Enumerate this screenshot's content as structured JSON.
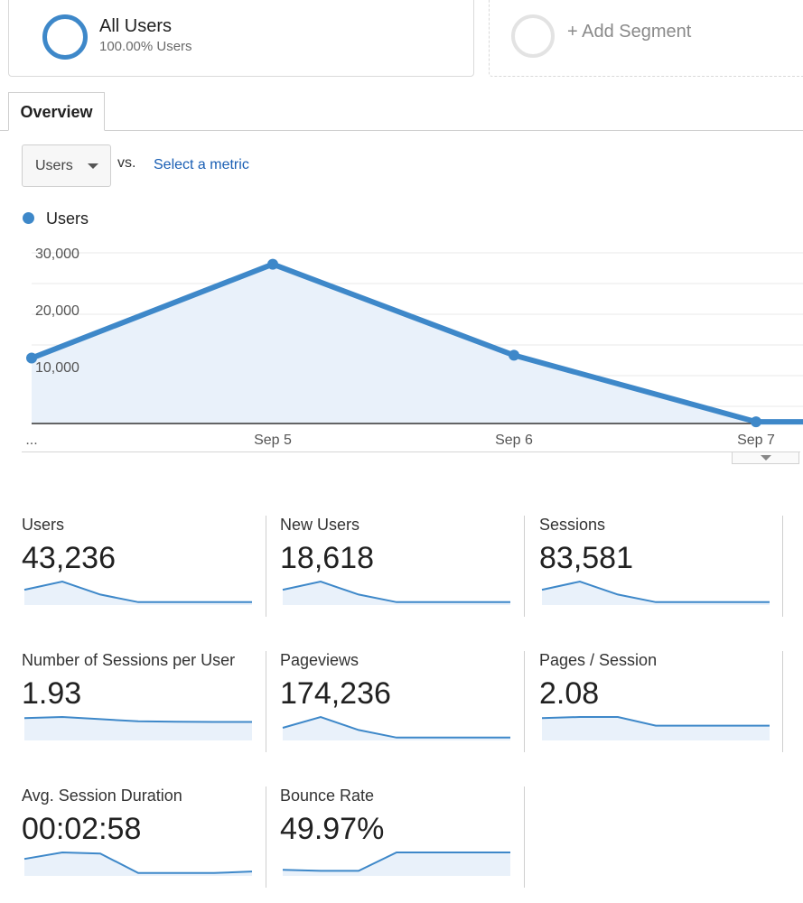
{
  "segments": {
    "active": {
      "name": "All Users",
      "subtitle": "100.00% Users"
    },
    "add_label": "+ Add Segment"
  },
  "tabs": [
    {
      "label": "Overview",
      "active": true
    }
  ],
  "metric_selector": {
    "selected": "Users",
    "vs_label": "vs.",
    "select_link": "Select a metric"
  },
  "legend": {
    "label": "Users",
    "color": "#3e88c9"
  },
  "chart_data": {
    "type": "area",
    "title": "",
    "xlabel": "",
    "ylabel": "",
    "x_tick_labels": [
      "...",
      "Sep 5",
      "Sep 6",
      "Sep 7"
    ],
    "y_tick_labels": [
      "10,000",
      "20,000",
      "30,000"
    ],
    "ylim": [
      0,
      30000
    ],
    "grid": true,
    "series": [
      {
        "name": "Users",
        "color": "#3e88c9",
        "values": [
          11500,
          28000,
          12000,
          300,
          300
        ]
      }
    ]
  },
  "metrics": [
    {
      "label": "Users",
      "value": "43,236",
      "spark": [
        0.62,
        1.0,
        0.4,
        0.05,
        0.05,
        0.05,
        0.05
      ]
    },
    {
      "label": "New Users",
      "value": "18,618",
      "spark": [
        0.62,
        1.0,
        0.4,
        0.05,
        0.05,
        0.05,
        0.05
      ]
    },
    {
      "label": "Sessions",
      "value": "83,581",
      "spark": [
        0.62,
        1.0,
        0.4,
        0.05,
        0.05,
        0.05,
        0.05
      ]
    },
    {
      "label": "Number of Sessions per User",
      "value": "1.93",
      "spark": [
        0.95,
        1.0,
        0.9,
        0.8,
        0.78,
        0.77,
        0.77
      ]
    },
    {
      "label": "Pageviews",
      "value": "174,236",
      "spark": [
        0.5,
        1.0,
        0.4,
        0.05,
        0.05,
        0.05,
        0.05
      ]
    },
    {
      "label": "Pages / Session",
      "value": "2.08",
      "spark": [
        0.95,
        1.0,
        1.0,
        0.6,
        0.6,
        0.6,
        0.6
      ]
    },
    {
      "label": "Avg. Session Duration",
      "value": "00:02:58",
      "spark": [
        0.7,
        1.0,
        0.95,
        0.05,
        0.05,
        0.05,
        0.12
      ]
    },
    {
      "label": "Bounce Rate",
      "value": "49.97%",
      "spark": [
        0.2,
        0.15,
        0.15,
        1.0,
        1.0,
        1.0,
        1.0
      ]
    }
  ]
}
